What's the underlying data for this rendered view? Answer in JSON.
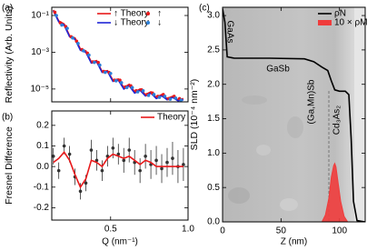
{
  "chart_data": [
    {
      "type": "line",
      "panel": "(a)",
      "ylabel": "Reflectivity (Arb. Units)",
      "ylog": true,
      "xlim": [
        0.12,
        1.0
      ],
      "xticks": [
        0.5,
        1.0
      ],
      "ylim": [
        0.28,
        2e-06
      ],
      "yticks": [
        {
          "value": 0.1,
          "label": "10⁻¹"
        },
        {
          "value": 0.001,
          "label": "10⁻³"
        },
        {
          "value": 1e-05,
          "label": "10⁻⁵"
        }
      ],
      "legend": "upper right",
      "legend_columns": 2,
      "series": [
        {
          "name": "↑ Theory",
          "color": "#e8191b",
          "style": "line",
          "x": [
            0.13,
            0.165,
            0.2,
            0.235,
            0.27,
            0.305,
            0.34,
            0.375,
            0.41,
            0.445,
            0.48,
            0.515,
            0.55,
            0.585,
            0.62,
            0.655,
            0.69,
            0.725,
            0.76,
            0.795,
            0.83,
            0.865,
            0.9,
            0.935,
            0.97
          ],
          "values": [
            0.2,
            0.05,
            0.035,
            0.008,
            0.006,
            0.0015,
            0.0012,
            0.0003,
            0.00035,
            9e-05,
            0.0001,
            3e-05,
            3.5e-05,
            1.2e-05,
            1.8e-05,
            7e-06,
            1e-05,
            5e-06,
            7e-06,
            3.5e-06,
            5e-06,
            3e-06,
            4e-06,
            2.6e-06,
            3e-06
          ]
        },
        {
          "name": "↓ Theory",
          "color": "#1f25d6",
          "style": "line",
          "x": [
            0.13,
            0.165,
            0.2,
            0.235,
            0.27,
            0.305,
            0.34,
            0.375,
            0.41,
            0.445,
            0.48,
            0.515,
            0.55,
            0.585,
            0.62,
            0.655,
            0.69,
            0.725,
            0.76,
            0.795,
            0.83,
            0.865,
            0.9,
            0.935,
            0.97
          ],
          "values": [
            0.18,
            0.045,
            0.03,
            0.007,
            0.005,
            0.0013,
            0.001,
            0.00026,
            0.0003,
            8e-05,
            9e-05,
            2.6e-05,
            3e-05,
            1e-05,
            1.5e-05,
            6e-06,
            8.5e-06,
            4.2e-06,
            6e-06,
            3e-06,
            4.3e-06,
            2.6e-06,
            3.5e-06,
            2.3e-06,
            2.6e-06
          ]
        },
        {
          "name": "↑",
          "color": "#e8191b",
          "style": "points",
          "x": [
            0.14,
            0.175,
            0.21,
            0.245,
            0.28,
            0.315,
            0.35,
            0.385,
            0.42,
            0.455,
            0.49,
            0.525,
            0.56,
            0.595,
            0.63,
            0.665,
            0.7,
            0.735,
            0.77,
            0.805,
            0.84,
            0.875,
            0.91,
            0.945
          ],
          "values": [
            0.15,
            0.04,
            0.025,
            0.007,
            0.004,
            0.0014,
            0.0009,
            0.0003,
            0.00028,
            9e-05,
            8e-05,
            3e-05,
            3e-05,
            1.3e-05,
            1.5e-05,
            8e-06,
            9e-06,
            5e-06,
            6e-06,
            4e-06,
            5e-06,
            3e-06,
            4e-06,
            3e-06
          ]
        },
        {
          "name": "↓",
          "color": "#2c7fd8",
          "style": "points",
          "x": [
            0.15,
            0.185,
            0.22,
            0.255,
            0.29,
            0.325,
            0.36,
            0.395,
            0.43,
            0.465,
            0.5,
            0.535,
            0.57,
            0.605,
            0.64,
            0.675,
            0.71,
            0.745,
            0.78,
            0.815,
            0.85,
            0.885,
            0.92,
            0.955
          ],
          "values": [
            0.1,
            0.03,
            0.02,
            0.006,
            0.003,
            0.0012,
            0.0007,
            0.00028,
            0.0002,
            8e-05,
            7e-05,
            2.8e-05,
            2.2e-05,
            1.2e-05,
            1.2e-05,
            7e-06,
            8e-06,
            4.5e-06,
            5e-06,
            3.5e-06,
            4e-06,
            2.8e-06,
            3.2e-06,
            2.5e-06
          ]
        }
      ]
    },
    {
      "type": "line",
      "panel": "(b)",
      "ylabel": "Fresnel Difference",
      "xlabel": "Q (nm⁻¹)",
      "xlim": [
        0.12,
        1.0
      ],
      "xticks": [
        0.5,
        {
          "value": 1,
          "label": "1.0"
        }
      ],
      "ylim": [
        -0.26,
        0.27
      ],
      "yticks": [
        0.2,
        0.1,
        {
          "value": 0,
          "label": "0.0"
        },
        -0.1,
        -0.2
      ],
      "legend": "upper right",
      "legend_columns": 1,
      "series": [
        {
          "color": "#333333",
          "style": "points",
          "x": [
            0.13,
            0.165,
            0.2,
            0.235,
            0.27,
            0.305,
            0.34,
            0.375,
            0.41,
            0.445,
            0.48,
            0.515,
            0.55,
            0.585,
            0.62,
            0.655,
            0.69,
            0.725,
            0.76,
            0.795,
            0.83,
            0.865,
            0.9,
            0.935,
            0.97
          ],
          "values": [
            0.05,
            -0.02,
            0.1,
            0.06,
            -0.05,
            -0.12,
            -0.08,
            0.08,
            0.03,
            -0.02,
            0.05,
            0.09,
            0.06,
            0.03,
            0.08,
            0.02,
            -0.02,
            0.05,
            0.01,
            0.03,
            -0.01,
            0.02,
            0.04,
            0,
            0.01
          ],
          "errors": [
            0.04,
            0.04,
            0.04,
            0.04,
            0.04,
            0.04,
            0.04,
            0.05,
            0.05,
            0.05,
            0.05,
            0.05,
            0.05,
            0.06,
            0.06,
            0.06,
            0.06,
            0.06,
            0.07,
            0.07,
            0.07,
            0.07,
            0.08,
            0.08,
            0.08
          ]
        },
        {
          "name": "Theory",
          "color": "#e8191b",
          "style": "line",
          "x": [
            0.13,
            0.165,
            0.2,
            0.235,
            0.27,
            0.305,
            0.34,
            0.375,
            0.41,
            0.445,
            0.48,
            0.515,
            0.55,
            0.585,
            0.62,
            0.655,
            0.69,
            0.725,
            0.76,
            0.795,
            0.83,
            0.865,
            0.9,
            0.935,
            0.97
          ],
          "values": [
            0.02,
            0.04,
            0.07,
            0.03,
            -0.04,
            -0.1,
            -0.06,
            0.03,
            0.02,
            0,
            0.04,
            0.06,
            0.05,
            0.04,
            0.05,
            0.03,
            0.01,
            0.03,
            0.02,
            0,
            0,
            0,
            0,
            0,
            0
          ]
        }
      ]
    },
    {
      "type": "line",
      "panel": "(c)",
      "ylabel": "SLD (10⁻⁴ nm⁻²)",
      "xlabel": "Z (nm)",
      "xlim": [
        0,
        122
      ],
      "xticks": [
        0,
        50,
        100
      ],
      "ylim": [
        0,
        3.12
      ],
      "yticks": [
        {
          "value": 0,
          "label": "0.0"
        },
        0.5,
        {
          "value": 1,
          "label": "1.0"
        },
        1.5,
        {
          "value": 2,
          "label": "2.0"
        },
        2.5,
        {
          "value": 3,
          "label": "3.0"
        }
      ],
      "legend": "upper right",
      "legend_columns": 1,
      "annotations": [
        "GaAs",
        "GaSb",
        "(Ga,Mn)Sb",
        "Cd₃As₂"
      ],
      "series": [
        {
          "name": "ρN",
          "color": "#000000",
          "style": "line",
          "x": [
            0,
            2,
            4,
            10,
            40,
            70,
            78,
            85,
            90,
            93,
            96,
            100,
            105,
            108,
            110,
            112,
            115,
            122
          ],
          "values": [
            3.1,
            2.9,
            2.4,
            2.38,
            2.38,
            2.37,
            2.33,
            2.25,
            2.2,
            2.05,
            1.92,
            1.9,
            1.9,
            1.85,
            1.2,
            0.3,
            0.02,
            0
          ]
        },
        {
          "name": "10 × ρM",
          "color": "#f03c3c",
          "style": "area",
          "x": [
            85,
            88,
            91,
            93,
            95,
            96,
            97,
            99,
            101,
            104,
            107
          ],
          "values": [
            0,
            0.1,
            0.35,
            0.65,
            0.82,
            0.85,
            0.8,
            0.55,
            0.3,
            0.08,
            0
          ]
        }
      ]
    }
  ]
}
